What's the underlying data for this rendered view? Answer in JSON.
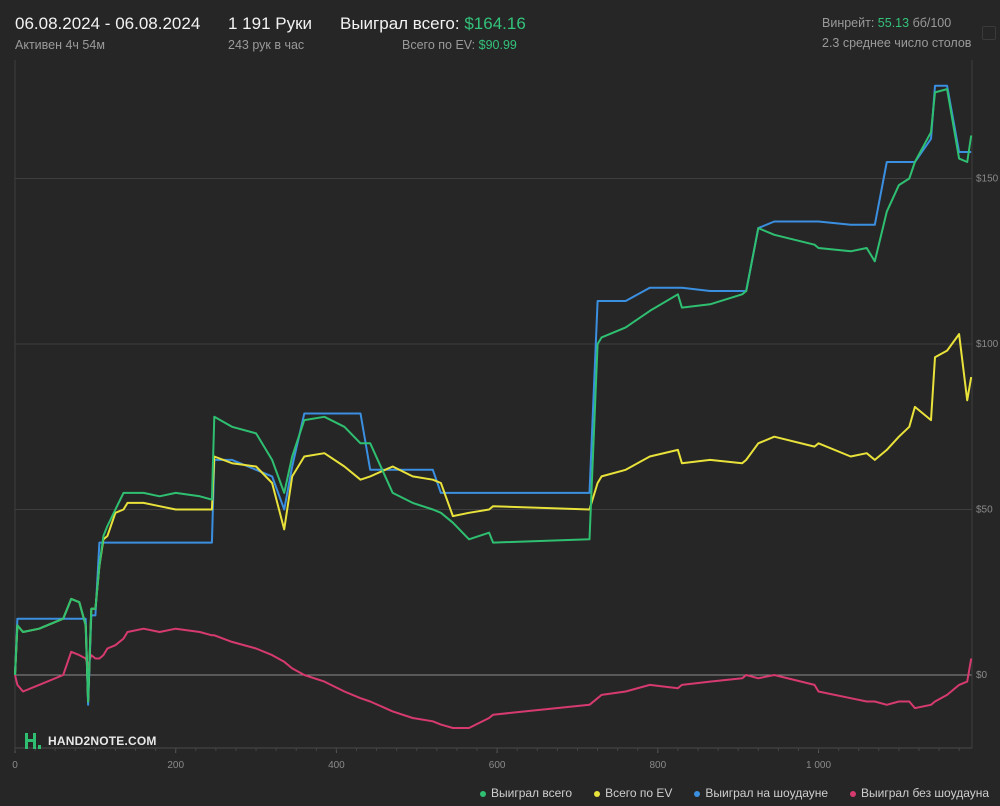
{
  "header": {
    "date_range": "06.08.2024 - 06.08.2024",
    "active_time": "Активен 4ч 54м",
    "hands": "1 191 Руки",
    "hands_per_hour": "243 рук в час",
    "won_total_label": "Выиграл всего:",
    "won_total_value": "$164.16",
    "ev_total_label": "Всего по EV:",
    "ev_total_value": "$90.99",
    "winrate_label": "Винрейт:",
    "winrate_value": "55.13",
    "winrate_suffix": "бб/100",
    "avg_tables": "2.3 среднее число столов"
  },
  "logo": {
    "text": "HAND2NOTE.COM"
  },
  "colors": {
    "won_total": "#2fbf71",
    "ev_total": "#e8e23a",
    "won_showdown": "#3b8fe0",
    "won_non_showdown": "#d63a70",
    "accent_green": "#33c27a"
  },
  "chart_data": {
    "type": "line",
    "x_ticks": [
      "0",
      "200",
      "400",
      "600",
      "800",
      "1 000"
    ],
    "y_ticks": [
      "$0",
      "$50",
      "$100",
      "$150"
    ],
    "xlim": [
      0,
      1191
    ],
    "ylim": [
      -28,
      180
    ],
    "grid": true,
    "legend_position": "bottom",
    "series": [
      {
        "name": "Выиграл всего",
        "color": "#2fbf71",
        "x": [
          0,
          3,
          10,
          30,
          60,
          70,
          80,
          88,
          91,
          95,
          100,
          105,
          110,
          115,
          125,
          135,
          140,
          160,
          180,
          200,
          230,
          245,
          248,
          270,
          300,
          320,
          335,
          345,
          360,
          385,
          410,
          430,
          442,
          470,
          495,
          520,
          530,
          545,
          565,
          590,
          595,
          715,
          725,
          730,
          760,
          790,
          825,
          830,
          865,
          905,
          910,
          925,
          945,
          995,
          1000,
          1040,
          1060,
          1070,
          1085,
          1100,
          1113,
          1120,
          1140,
          1145,
          1160,
          1175,
          1185,
          1190
        ],
        "y": [
          0,
          15,
          13,
          14,
          17,
          23,
          22,
          15,
          -8,
          20,
          20,
          33,
          42,
          45,
          50,
          55,
          55,
          55,
          54,
          55,
          54,
          53,
          78,
          75,
          73,
          65,
          55,
          66,
          77,
          78,
          75,
          70,
          70,
          55,
          52,
          50,
          49,
          46,
          41,
          43,
          40,
          41,
          100,
          102,
          105,
          110,
          115,
          111,
          112,
          115,
          116,
          135,
          133,
          130,
          129,
          128,
          129,
          125,
          140,
          148,
          150,
          155,
          164,
          176,
          177,
          156,
          155,
          163
        ]
      },
      {
        "name": "Всего по EV",
        "color": "#e8e23a",
        "x": [
          0,
          3,
          10,
          30,
          60,
          70,
          80,
          88,
          91,
          95,
          100,
          105,
          110,
          115,
          125,
          135,
          140,
          160,
          180,
          200,
          230,
          245,
          248,
          270,
          300,
          320,
          335,
          345,
          360,
          385,
          410,
          430,
          442,
          470,
          495,
          520,
          530,
          545,
          565,
          590,
          595,
          715,
          725,
          730,
          760,
          790,
          825,
          830,
          865,
          905,
          910,
          925,
          945,
          995,
          1000,
          1040,
          1060,
          1070,
          1085,
          1100,
          1113,
          1120,
          1140,
          1145,
          1160,
          1175,
          1185,
          1190
        ],
        "y": [
          0,
          15,
          13,
          14,
          17,
          23,
          22,
          15,
          -8,
          20,
          20,
          33,
          41,
          42,
          49,
          50,
          52,
          52,
          51,
          50,
          50,
          50,
          66,
          64,
          63,
          58,
          44,
          60,
          66,
          67,
          63,
          59,
          60,
          63,
          60,
          59,
          58,
          48,
          49,
          50,
          51,
          50,
          58,
          60,
          62,
          66,
          68,
          64,
          65,
          64,
          65,
          70,
          72,
          69,
          70,
          66,
          67,
          65,
          68,
          72,
          75,
          81,
          77,
          96,
          98,
          103,
          83,
          90
        ]
      },
      {
        "name": "Выиграл на шоудауне",
        "color": "#3b8fe0",
        "x": [
          0,
          3,
          10,
          30,
          60,
          70,
          80,
          88,
          91,
          95,
          100,
          105,
          110,
          115,
          125,
          135,
          140,
          160,
          180,
          200,
          230,
          245,
          248,
          270,
          300,
          320,
          335,
          345,
          360,
          385,
          410,
          430,
          442,
          470,
          495,
          520,
          530,
          545,
          565,
          590,
          595,
          715,
          725,
          730,
          760,
          790,
          825,
          830,
          865,
          905,
          910,
          925,
          945,
          995,
          1000,
          1040,
          1060,
          1070,
          1085,
          1100,
          1113,
          1120,
          1140,
          1145,
          1160,
          1175,
          1185,
          1190
        ],
        "y": [
          0,
          17,
          17,
          17,
          17,
          17,
          17,
          17,
          -9,
          18,
          18,
          40,
          40,
          40,
          40,
          40,
          40,
          40,
          40,
          40,
          40,
          40,
          65,
          65,
          62,
          60,
          50,
          63,
          79,
          79,
          79,
          79,
          62,
          62,
          62,
          62,
          55,
          55,
          55,
          55,
          55,
          55,
          113,
          113,
          113,
          117,
          117,
          117,
          116,
          116,
          116,
          135,
          137,
          137,
          137,
          136,
          136,
          136,
          155,
          155,
          155,
          155,
          162,
          178,
          178,
          158,
          158,
          158
        ]
      },
      {
        "name": "Выиграл без шоудауна",
        "color": "#d63a70",
        "x": [
          0,
          3,
          10,
          30,
          60,
          70,
          80,
          88,
          91,
          95,
          100,
          105,
          110,
          115,
          125,
          135,
          140,
          160,
          180,
          200,
          230,
          245,
          248,
          270,
          300,
          320,
          335,
          345,
          360,
          385,
          410,
          430,
          442,
          470,
          495,
          520,
          530,
          545,
          565,
          590,
          595,
          715,
          725,
          730,
          760,
          790,
          825,
          830,
          865,
          905,
          910,
          925,
          945,
          995,
          1000,
          1040,
          1060,
          1070,
          1085,
          1100,
          1113,
          1120,
          1140,
          1145,
          1160,
          1175,
          1185,
          1190
        ],
        "y": [
          0,
          -3,
          -5,
          -3,
          0,
          7,
          6,
          5,
          3,
          6,
          5,
          5,
          6,
          8,
          9,
          11,
          13,
          14,
          13,
          14,
          13,
          12,
          12,
          10,
          8,
          6,
          4,
          2,
          0,
          -2,
          -5,
          -7,
          -8,
          -11,
          -13,
          -14,
          -15,
          -16,
          -16,
          -13,
          -12,
          -9,
          -7,
          -6,
          -5,
          -3,
          -4,
          -3,
          -2,
          -1,
          0,
          -1,
          0,
          -3,
          -5,
          -7,
          -8,
          -8,
          -9,
          -8,
          -8,
          -10,
          -9,
          -8,
          -6,
          -3,
          -2,
          5
        ]
      }
    ]
  }
}
